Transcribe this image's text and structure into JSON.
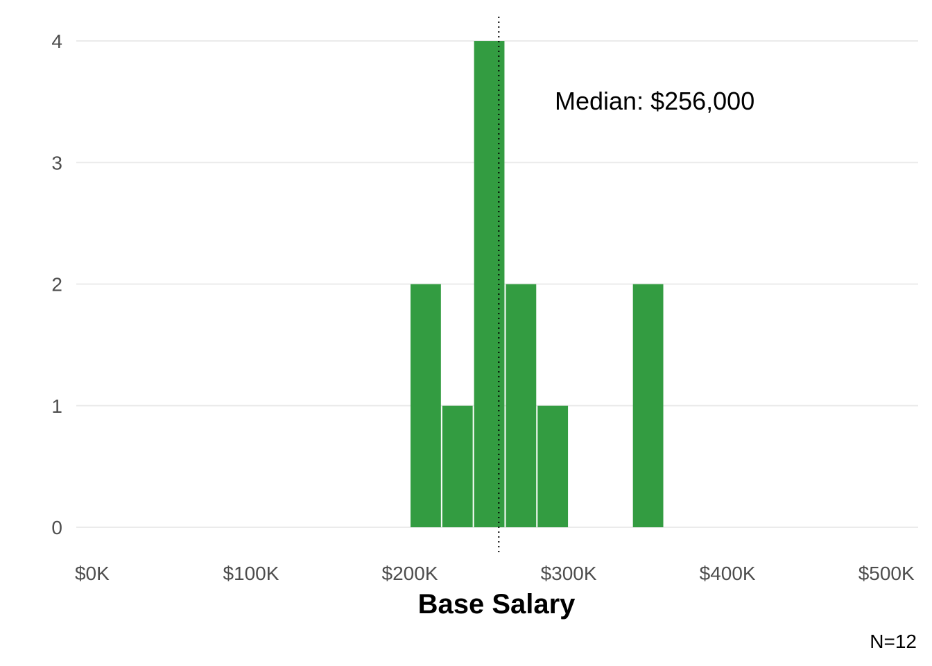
{
  "chart_data": {
    "type": "bar",
    "xlabel": "Base Salary",
    "ylabel": "",
    "x_ticks": [
      {
        "value": 0,
        "label": "$0K"
      },
      {
        "value": 100000,
        "label": "$100K"
      },
      {
        "value": 200000,
        "label": "$200K"
      },
      {
        "value": 300000,
        "label": "$300K"
      },
      {
        "value": 400000,
        "label": "$400K"
      },
      {
        "value": 500000,
        "label": "$500K"
      }
    ],
    "y_ticks": [
      {
        "value": 0,
        "label": "0"
      },
      {
        "value": 1,
        "label": "1"
      },
      {
        "value": 2,
        "label": "2"
      },
      {
        "value": 3,
        "label": "3"
      },
      {
        "value": 4,
        "label": "4"
      }
    ],
    "xlim": [
      -10000,
      520000
    ],
    "ylim": [
      0,
      4.2
    ],
    "bins": [
      {
        "start": 200000,
        "end": 220000,
        "count": 2
      },
      {
        "start": 220000,
        "end": 240000,
        "count": 1
      },
      {
        "start": 240000,
        "end": 260000,
        "count": 4
      },
      {
        "start": 260000,
        "end": 280000,
        "count": 2
      },
      {
        "start": 280000,
        "end": 300000,
        "count": 1
      },
      {
        "start": 300000,
        "end": 320000,
        "count": 0
      },
      {
        "start": 320000,
        "end": 340000,
        "count": 0
      },
      {
        "start": 340000,
        "end": 360000,
        "count": 2
      }
    ],
    "median": 256000,
    "median_label": "Median: $256,000",
    "caption": "N=12",
    "bar_color": "#339c41",
    "grid": true
  }
}
